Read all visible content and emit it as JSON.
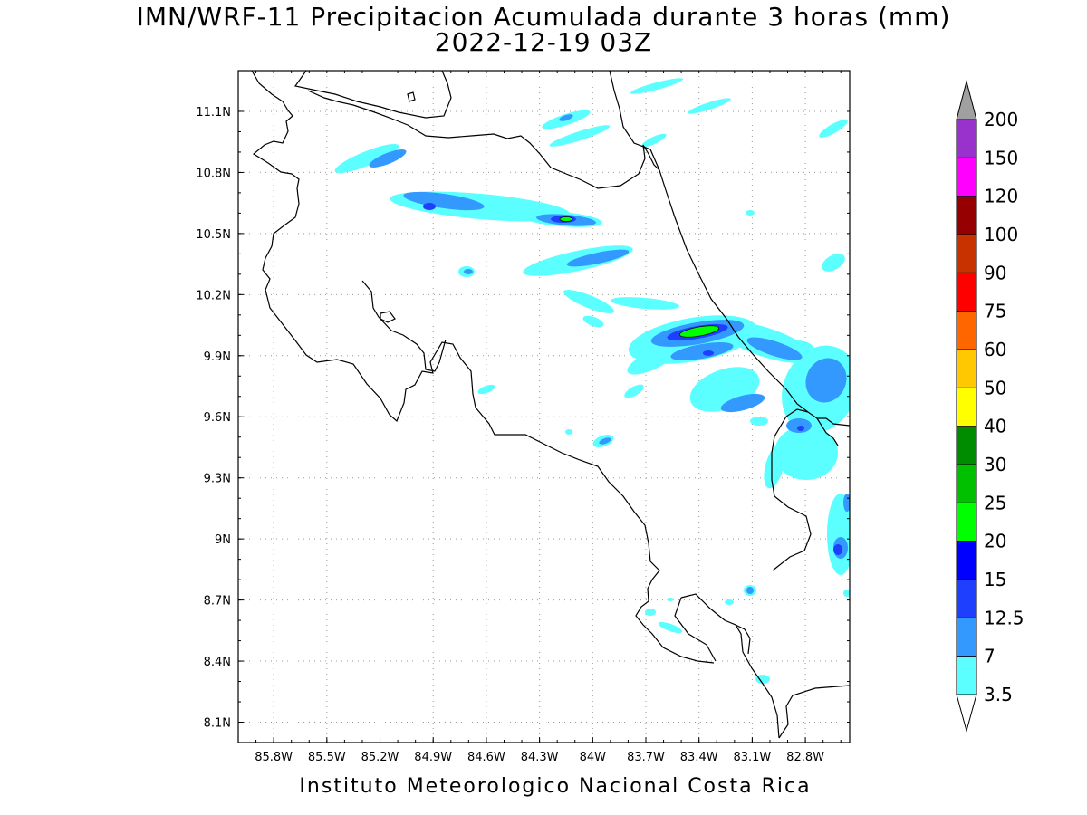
{
  "title": {
    "line1": "IMN/WRF-11 Precipitacion Acumulada durante 3 horas (mm)",
    "line2": "2022-12-19 03Z"
  },
  "credit": "Instituto Meteorologico Nacional Costa Rica",
  "map": {
    "lon_range": [
      -86.0,
      -82.55
    ],
    "lat_range": [
      8.0,
      11.3
    ],
    "x_ticks": [
      {
        "lon": -85.8,
        "label": "85.8W"
      },
      {
        "lon": -85.5,
        "label": "85.5W"
      },
      {
        "lon": -85.2,
        "label": "85.2W"
      },
      {
        "lon": -84.9,
        "label": "84.9W"
      },
      {
        "lon": -84.6,
        "label": "84.6W"
      },
      {
        "lon": -84.3,
        "label": "84.3W"
      },
      {
        "lon": -84.0,
        "label": "84W"
      },
      {
        "lon": -83.7,
        "label": "83.7W"
      },
      {
        "lon": -83.4,
        "label": "83.4W"
      },
      {
        "lon": -83.1,
        "label": "83.1W"
      },
      {
        "lon": -82.8,
        "label": "82.8W"
      }
    ],
    "y_ticks": [
      {
        "lat": 11.1,
        "label": "11.1N"
      },
      {
        "lat": 10.8,
        "label": "10.8N"
      },
      {
        "lat": 10.5,
        "label": "10.5N"
      },
      {
        "lat": 10.2,
        "label": "10.2N"
      },
      {
        "lat": 9.9,
        "label": "9.9N"
      },
      {
        "lat": 9.6,
        "label": "9.6N"
      },
      {
        "lat": 9.3,
        "label": "9.3N"
      },
      {
        "lat": 9.0,
        "label": "9N"
      },
      {
        "lat": 8.7,
        "label": "8.7N"
      },
      {
        "lat": 8.4,
        "label": "8.4N"
      },
      {
        "lat": 8.1,
        "label": "8.1N"
      }
    ],
    "grid": true,
    "precip_cells": [
      {
        "lon": -85.05,
        "lat": 10.85,
        "mm": 3.5
      },
      {
        "lon": -84.9,
        "lat": 10.72,
        "mm": 3.5
      },
      {
        "lon": -84.7,
        "lat": 10.7,
        "mm": 3.5
      },
      {
        "lon": -84.9,
        "lat": 10.66,
        "mm": 7
      },
      {
        "lon": -84.88,
        "lat": 10.64,
        "mm": 12.5
      },
      {
        "lon": -84.1,
        "lat": 10.57,
        "mm": 7
      },
      {
        "lon": -84.05,
        "lat": 10.57,
        "mm": 15
      },
      {
        "lon": -84.0,
        "lat": 10.38,
        "mm": 7
      },
      {
        "lon": -83.42,
        "lat": 10.0,
        "mm": 12.5
      },
      {
        "lon": -83.4,
        "lat": 10.0,
        "mm": 15
      },
      {
        "lon": -83.28,
        "lat": 9.87,
        "mm": 3.5
      },
      {
        "lon": -82.85,
        "lat": 9.62,
        "mm": 7
      },
      {
        "lon": -82.62,
        "lat": 8.95,
        "mm": 7
      }
    ]
  },
  "colorbar": {
    "levels": [
      "3.5",
      "7",
      "12.5",
      "15",
      "20",
      "25",
      "30",
      "40",
      "50",
      "60",
      "75",
      "90",
      "100",
      "120",
      "150",
      "200"
    ],
    "colors": [
      "#5cffff",
      "#3399ff",
      "#1f3fff",
      "#0000ff",
      "#00ff00",
      "#00c000",
      "#008c00",
      "#ffff00",
      "#ffc800",
      "#ff6600",
      "#ff0000",
      "#c83200",
      "#960000",
      "#ff00ff",
      "#9932cc",
      "#f5f5f5"
    ],
    "over_color": "#a0a0a0",
    "under_color": "#ffffff"
  }
}
